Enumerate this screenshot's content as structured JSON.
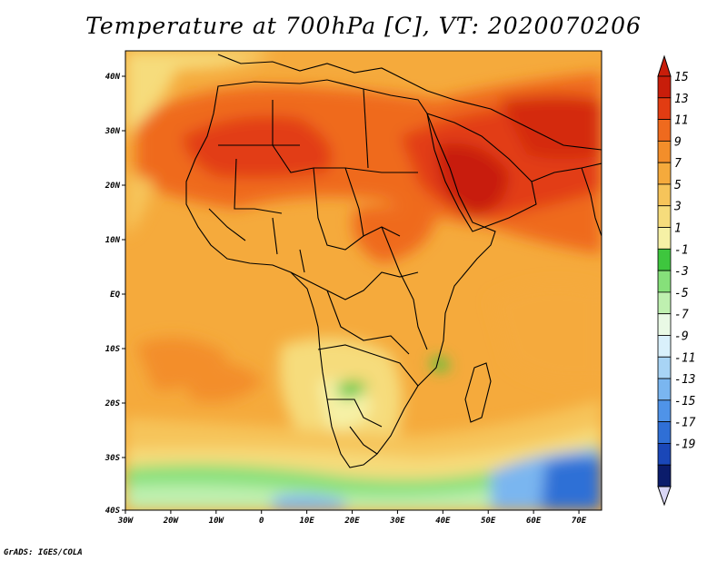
{
  "title": "Temperature at 700hPa [C], VT: 2020070206",
  "credit": "GrADS: IGES/COLA",
  "map": {
    "lon_labels": [
      "30W",
      "20W",
      "10W",
      "0",
      "10E",
      "20E",
      "30E",
      "40E",
      "50E",
      "60E",
      "70E"
    ],
    "lat_labels": [
      "40N",
      "30N",
      "20N",
      "10N",
      "EQ",
      "10S",
      "20S",
      "30S",
      "40S"
    ]
  },
  "colorbar": {
    "colors": [
      "#0b1c6b",
      "#1a47b8",
      "#2f6fd6",
      "#4f93e8",
      "#7ab6f0",
      "#a8d4f5",
      "#d9f0fb",
      "#e9f9e5",
      "#bff0b0",
      "#86e07a",
      "#3ec63e",
      "#f6f1a6",
      "#f6dc7c",
      "#f6c45a",
      "#f5aa3c",
      "#f38e2a",
      "#ef6a1e",
      "#e23c12",
      "#c81d0a"
    ],
    "labels": [
      "15",
      "13",
      "11",
      "9",
      "7",
      "5",
      "3",
      "1",
      "-1",
      "-3",
      "-5",
      "-7",
      "-9",
      "-11",
      "-13",
      "-15",
      "-17",
      "-19"
    ]
  }
}
